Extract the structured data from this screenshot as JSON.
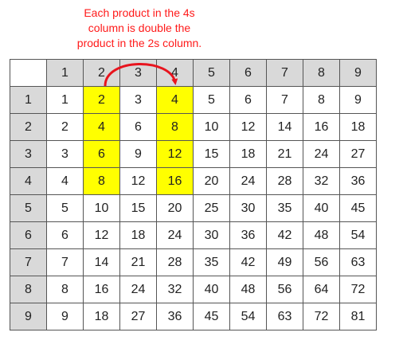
{
  "annotation": {
    "lines": [
      "Each product in the 4s",
      "column is double the",
      "product in the 2s column."
    ],
    "color": "#ff1a1a"
  },
  "table": {
    "corner": "",
    "col_headers": [
      "1",
      "2",
      "3",
      "4",
      "5",
      "6",
      "7",
      "8",
      "9"
    ],
    "rows": [
      {
        "header": "1",
        "cells": [
          "1",
          "2",
          "3",
          "4",
          "5",
          "6",
          "7",
          "8",
          "9"
        ]
      },
      {
        "header": "2",
        "cells": [
          "2",
          "4",
          "6",
          "8",
          "10",
          "12",
          "14",
          "16",
          "18"
        ]
      },
      {
        "header": "3",
        "cells": [
          "3",
          "6",
          "9",
          "12",
          "15",
          "18",
          "21",
          "24",
          "27"
        ]
      },
      {
        "header": "4",
        "cells": [
          "4",
          "8",
          "12",
          "16",
          "20",
          "24",
          "28",
          "32",
          "36"
        ]
      },
      {
        "header": "5",
        "cells": [
          "5",
          "10",
          "15",
          "20",
          "25",
          "30",
          "35",
          "40",
          "45"
        ]
      },
      {
        "header": "6",
        "cells": [
          "6",
          "12",
          "18",
          "24",
          "30",
          "36",
          "42",
          "48",
          "54"
        ]
      },
      {
        "header": "7",
        "cells": [
          "7",
          "14",
          "21",
          "28",
          "35",
          "42",
          "49",
          "56",
          "63"
        ]
      },
      {
        "header": "8",
        "cells": [
          "8",
          "16",
          "24",
          "32",
          "40",
          "48",
          "56",
          "64",
          "72"
        ]
      },
      {
        "header": "9",
        "cells": [
          "9",
          "18",
          "27",
          "36",
          "45",
          "54",
          "63",
          "72",
          "81"
        ]
      }
    ],
    "highlight": {
      "row_headers": [
        "1",
        "2",
        "3",
        "4"
      ],
      "col_headers": [
        "2",
        "4"
      ],
      "color": "#ffff00"
    },
    "header_bg": "#d9d9d9"
  }
}
